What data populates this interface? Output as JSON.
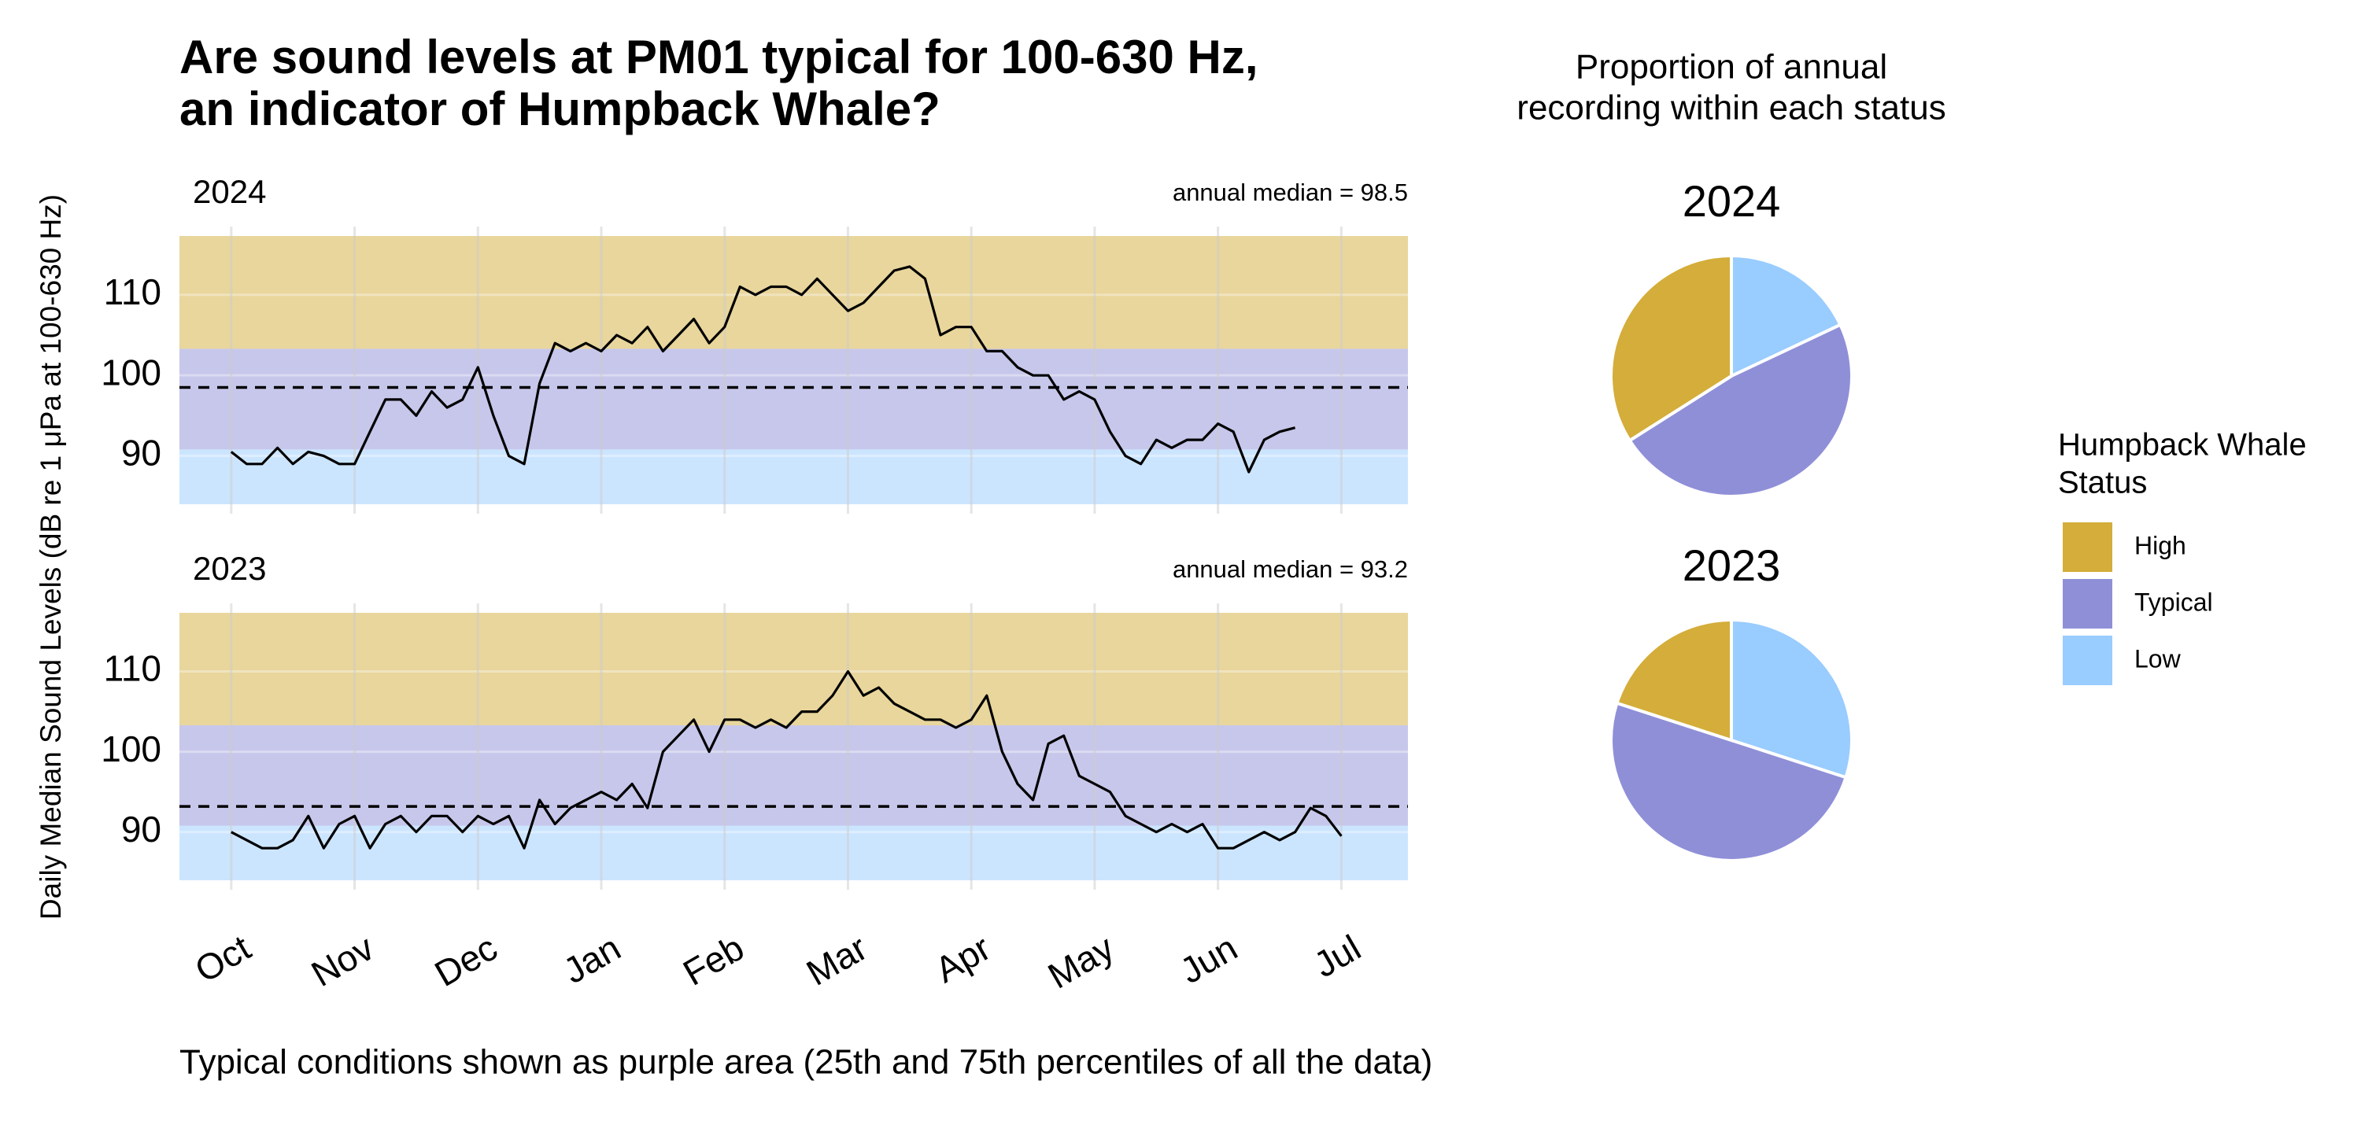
{
  "title": [
    "Are sound levels at PM01 typical for 100-630 Hz,",
    "an indicator of Humpback Whale?"
  ],
  "y_label": "Daily Median Sound Levels (dB re 1 μPa at 100-630 Hz)",
  "caption": "Typical conditions shown as purple area (25th and 75th percentiles of all the data)",
  "pie_title": [
    "Proportion of annual",
    "recording within each status"
  ],
  "legend": {
    "title": [
      "Humpback Whale",
      "Status"
    ],
    "items": [
      {
        "name": "High",
        "color": "#d4ad3a"
      },
      {
        "name": "Typical",
        "color": "#8f8fd8"
      },
      {
        "name": "Low",
        "color": "#99ccff"
      }
    ]
  },
  "chart_data": [
    {
      "type": "line",
      "panel_label": "2024",
      "median": 98.5,
      "median_label": "annual median = 98.5",
      "typical_range": [
        90.8,
        103.3
      ],
      "color": "#000000",
      "xlim": [
        -0.42,
        9.54
      ],
      "ylim": [
        84,
        117.3
      ],
      "yticks": [
        90,
        100,
        110
      ],
      "xticks": [
        0,
        1,
        2,
        3,
        4,
        5,
        6,
        7,
        8,
        9
      ],
      "x": [
        0,
        0.125,
        0.25,
        0.375,
        0.5,
        0.625,
        0.75,
        0.875,
        1,
        1.125,
        1.25,
        1.375,
        1.5,
        1.625,
        1.75,
        1.875,
        2,
        2.125,
        2.25,
        2.375,
        2.5,
        2.625,
        2.75,
        2.875,
        3,
        3.125,
        3.25,
        3.375,
        3.5,
        3.625,
        3.75,
        3.875,
        4,
        4.125,
        4.25,
        4.375,
        4.5,
        4.625,
        4.75,
        4.875,
        5,
        5.125,
        5.25,
        5.375,
        5.5,
        5.625,
        5.75,
        5.875,
        6,
        6.125,
        6.25,
        6.375,
        6.5,
        6.625,
        6.75,
        6.875,
        7,
        7.125,
        7.25,
        7.375,
        7.5,
        7.625,
        7.75,
        7.875,
        8,
        8.125,
        8.25,
        8.375,
        8.5,
        8.625
      ],
      "values": [
        90.5,
        89,
        89,
        91,
        89,
        90.5,
        90,
        89,
        89,
        93,
        97,
        97,
        95,
        98,
        96,
        97,
        101,
        95,
        90,
        89,
        99,
        104,
        103,
        104,
        103,
        105,
        104,
        106,
        103,
        105,
        107,
        104,
        106,
        111,
        110,
        111,
        111,
        110,
        112,
        110,
        108,
        109,
        111,
        113,
        113.5,
        112,
        105,
        106,
        106,
        103,
        103,
        101,
        100,
        100,
        97,
        98,
        97,
        93,
        90,
        89,
        92,
        91,
        92,
        92,
        94,
        93,
        88,
        92,
        93,
        93.5
      ]
    },
    {
      "type": "line",
      "panel_label": "2023",
      "median": 93.2,
      "median_label": "annual median = 93.2",
      "typical_range": [
        90.8,
        103.3
      ],
      "color": "#000000",
      "xlim": [
        -0.42,
        9.54
      ],
      "ylim": [
        84,
        117.3
      ],
      "yticks": [
        90,
        100,
        110
      ],
      "xticks": [
        {
          "value": 0,
          "label": "Oct"
        },
        {
          "value": 1,
          "label": "Nov"
        },
        {
          "value": 2,
          "label": "Dec"
        },
        {
          "value": 3,
          "label": "Jan"
        },
        {
          "value": 4,
          "label": "Feb"
        },
        {
          "value": 5,
          "label": "Mar"
        },
        {
          "value": 6,
          "label": "Apr"
        },
        {
          "value": 7,
          "label": "May"
        },
        {
          "value": 8,
          "label": "Jun"
        },
        {
          "value": 9,
          "label": "Jul"
        }
      ],
      "x": [
        0,
        0.125,
        0.25,
        0.375,
        0.5,
        0.625,
        0.75,
        0.875,
        1,
        1.125,
        1.25,
        1.375,
        1.5,
        1.625,
        1.75,
        1.875,
        2,
        2.125,
        2.25,
        2.375,
        2.5,
        2.625,
        2.75,
        2.875,
        3,
        3.125,
        3.25,
        3.375,
        3.5,
        3.625,
        3.75,
        3.875,
        4,
        4.125,
        4.25,
        4.375,
        4.5,
        4.625,
        4.75,
        4.875,
        5,
        5.125,
        5.25,
        5.375,
        5.5,
        5.625,
        5.75,
        5.875,
        6,
        6.125,
        6.25,
        6.375,
        6.5,
        6.625,
        6.75,
        6.875,
        7,
        7.125,
        7.25,
        7.375,
        7.5,
        7.625,
        7.75,
        7.875,
        8,
        8.125,
        8.25,
        8.375,
        8.5,
        8.625,
        8.75,
        8.875,
        9
      ],
      "values": [
        90,
        89,
        88,
        88,
        89,
        92,
        88,
        91,
        92,
        88,
        91,
        92,
        90,
        92,
        92,
        90,
        92,
        91,
        92,
        88,
        94,
        91,
        93,
        94,
        95,
        94,
        96,
        93,
        100,
        102,
        104,
        100,
        104,
        104,
        103,
        104,
        103,
        105,
        105,
        107,
        110,
        107,
        108,
        106,
        105,
        104,
        104,
        103,
        104,
        107,
        100,
        96,
        94,
        101,
        102,
        97,
        96,
        95,
        92,
        91,
        90,
        91,
        90,
        91,
        88,
        88,
        89,
        90,
        89,
        90,
        93,
        92,
        89.5
      ]
    },
    {
      "type": "pie",
      "panel_label": "2024",
      "categories": [
        "Low",
        "Typical",
        "High"
      ],
      "values": [
        18,
        48,
        34
      ]
    },
    {
      "type": "pie",
      "panel_label": "2023",
      "categories": [
        "Low",
        "Typical",
        "High"
      ],
      "values": [
        30,
        50,
        20
      ]
    }
  ]
}
